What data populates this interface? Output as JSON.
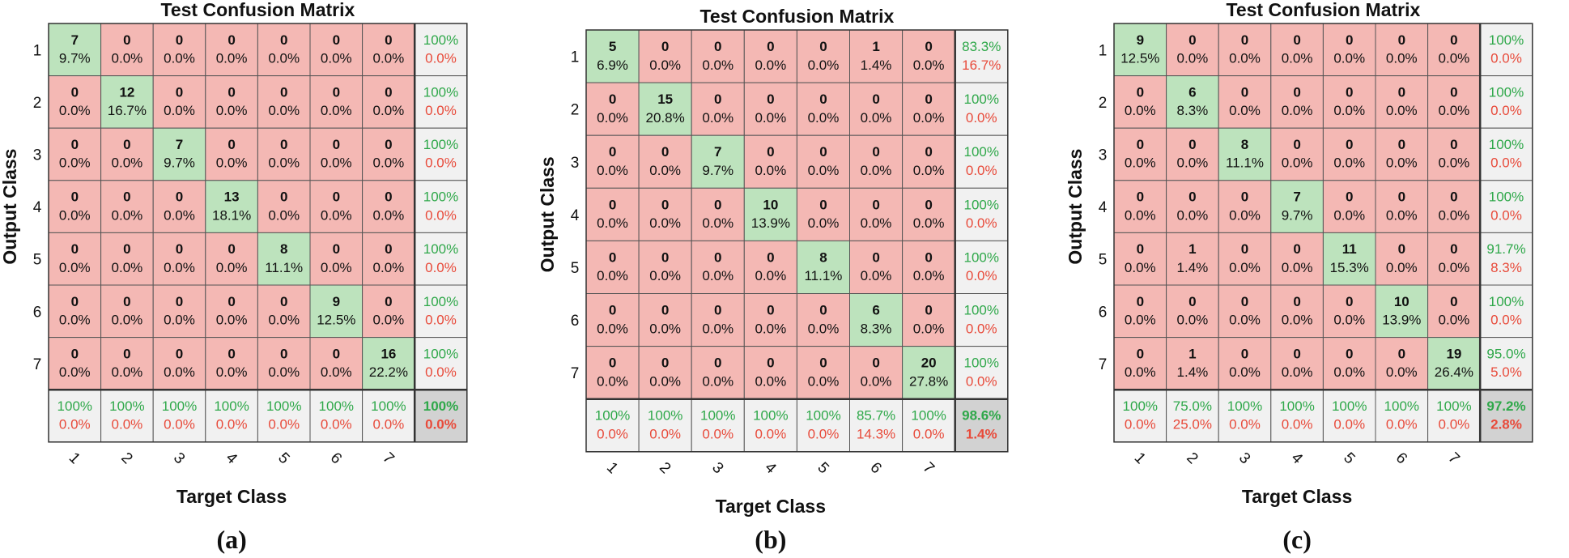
{
  "chart_data": [
    {
      "type": "heatmap",
      "title": "Test Confusion Matrix",
      "xlabel": "Target Class",
      "ylabel": "Output Class",
      "panel_label": "(a)",
      "classes": [
        "1",
        "2",
        "3",
        "4",
        "5",
        "6",
        "7"
      ],
      "matrix": [
        [
          7,
          0,
          0,
          0,
          0,
          0,
          0
        ],
        [
          0,
          12,
          0,
          0,
          0,
          0,
          0
        ],
        [
          0,
          0,
          7,
          0,
          0,
          0,
          0
        ],
        [
          0,
          0,
          0,
          13,
          0,
          0,
          0
        ],
        [
          0,
          0,
          0,
          0,
          8,
          0,
          0
        ],
        [
          0,
          0,
          0,
          0,
          0,
          9,
          0
        ],
        [
          0,
          0,
          0,
          0,
          0,
          0,
          16
        ]
      ],
      "cell_percent": [
        [
          "9.7%",
          "0.0%",
          "0.0%",
          "0.0%",
          "0.0%",
          "0.0%",
          "0.0%"
        ],
        [
          "0.0%",
          "16.7%",
          "0.0%",
          "0.0%",
          "0.0%",
          "0.0%",
          "0.0%"
        ],
        [
          "0.0%",
          "0.0%",
          "9.7%",
          "0.0%",
          "0.0%",
          "0.0%",
          "0.0%"
        ],
        [
          "0.0%",
          "0.0%",
          "0.0%",
          "18.1%",
          "0.0%",
          "0.0%",
          "0.0%"
        ],
        [
          "0.0%",
          "0.0%",
          "0.0%",
          "0.0%",
          "11.1%",
          "0.0%",
          "0.0%"
        ],
        [
          "0.0%",
          "0.0%",
          "0.0%",
          "0.0%",
          "0.0%",
          "12.5%",
          "0.0%"
        ],
        [
          "0.0%",
          "0.0%",
          "0.0%",
          "0.0%",
          "0.0%",
          "0.0%",
          "22.2%"
        ]
      ],
      "row_summary": [
        [
          "100%",
          "0.0%"
        ],
        [
          "100%",
          "0.0%"
        ],
        [
          "100%",
          "0.0%"
        ],
        [
          "100%",
          "0.0%"
        ],
        [
          "100%",
          "0.0%"
        ],
        [
          "100%",
          "0.0%"
        ],
        [
          "100%",
          "0.0%"
        ]
      ],
      "col_summary": [
        [
          "100%",
          "0.0%"
        ],
        [
          "100%",
          "0.0%"
        ],
        [
          "100%",
          "0.0%"
        ],
        [
          "100%",
          "0.0%"
        ],
        [
          "100%",
          "0.0%"
        ],
        [
          "100%",
          "0.0%"
        ],
        [
          "100%",
          "0.0%"
        ]
      ],
      "overall": [
        "100%",
        "0.0%"
      ]
    },
    {
      "type": "heatmap",
      "title": "Test Confusion Matrix",
      "xlabel": "Target Class",
      "ylabel": "Output Class",
      "panel_label": "(b)",
      "classes": [
        "1",
        "2",
        "3",
        "4",
        "5",
        "6",
        "7"
      ],
      "matrix": [
        [
          5,
          0,
          0,
          0,
          0,
          1,
          0
        ],
        [
          0,
          15,
          0,
          0,
          0,
          0,
          0
        ],
        [
          0,
          0,
          7,
          0,
          0,
          0,
          0
        ],
        [
          0,
          0,
          0,
          10,
          0,
          0,
          0
        ],
        [
          0,
          0,
          0,
          0,
          8,
          0,
          0
        ],
        [
          0,
          0,
          0,
          0,
          0,
          6,
          0
        ],
        [
          0,
          0,
          0,
          0,
          0,
          0,
          20
        ]
      ],
      "cell_percent": [
        [
          "6.9%",
          "0.0%",
          "0.0%",
          "0.0%",
          "0.0%",
          "1.4%",
          "0.0%"
        ],
        [
          "0.0%",
          "20.8%",
          "0.0%",
          "0.0%",
          "0.0%",
          "0.0%",
          "0.0%"
        ],
        [
          "0.0%",
          "0.0%",
          "9.7%",
          "0.0%",
          "0.0%",
          "0.0%",
          "0.0%"
        ],
        [
          "0.0%",
          "0.0%",
          "0.0%",
          "13.9%",
          "0.0%",
          "0.0%",
          "0.0%"
        ],
        [
          "0.0%",
          "0.0%",
          "0.0%",
          "0.0%",
          "11.1%",
          "0.0%",
          "0.0%"
        ],
        [
          "0.0%",
          "0.0%",
          "0.0%",
          "0.0%",
          "0.0%",
          "8.3%",
          "0.0%"
        ],
        [
          "0.0%",
          "0.0%",
          "0.0%",
          "0.0%",
          "0.0%",
          "0.0%",
          "27.8%"
        ]
      ],
      "row_summary": [
        [
          "83.3%",
          "16.7%"
        ],
        [
          "100%",
          "0.0%"
        ],
        [
          "100%",
          "0.0%"
        ],
        [
          "100%",
          "0.0%"
        ],
        [
          "100%",
          "0.0%"
        ],
        [
          "100%",
          "0.0%"
        ],
        [
          "100%",
          "0.0%"
        ]
      ],
      "col_summary": [
        [
          "100%",
          "0.0%"
        ],
        [
          "100%",
          "0.0%"
        ],
        [
          "100%",
          "0.0%"
        ],
        [
          "100%",
          "0.0%"
        ],
        [
          "100%",
          "0.0%"
        ],
        [
          "85.7%",
          "14.3%"
        ],
        [
          "100%",
          "0.0%"
        ]
      ],
      "overall": [
        "98.6%",
        "1.4%"
      ]
    },
    {
      "type": "heatmap",
      "title": "Test Confusion Matrix",
      "xlabel": "Target Class",
      "ylabel": "Output Class",
      "panel_label": "(c)",
      "classes": [
        "1",
        "2",
        "3",
        "4",
        "5",
        "6",
        "7"
      ],
      "matrix": [
        [
          9,
          0,
          0,
          0,
          0,
          0,
          0
        ],
        [
          0,
          6,
          0,
          0,
          0,
          0,
          0
        ],
        [
          0,
          0,
          8,
          0,
          0,
          0,
          0
        ],
        [
          0,
          0,
          0,
          7,
          0,
          0,
          0
        ],
        [
          0,
          1,
          0,
          0,
          11,
          0,
          0
        ],
        [
          0,
          0,
          0,
          0,
          0,
          10,
          0
        ],
        [
          0,
          1,
          0,
          0,
          0,
          0,
          19
        ]
      ],
      "cell_percent": [
        [
          "12.5%",
          "0.0%",
          "0.0%",
          "0.0%",
          "0.0%",
          "0.0%",
          "0.0%"
        ],
        [
          "0.0%",
          "8.3%",
          "0.0%",
          "0.0%",
          "0.0%",
          "0.0%",
          "0.0%"
        ],
        [
          "0.0%",
          "0.0%",
          "11.1%",
          "0.0%",
          "0.0%",
          "0.0%",
          "0.0%"
        ],
        [
          "0.0%",
          "0.0%",
          "0.0%",
          "9.7%",
          "0.0%",
          "0.0%",
          "0.0%"
        ],
        [
          "0.0%",
          "1.4%",
          "0.0%",
          "0.0%",
          "15.3%",
          "0.0%",
          "0.0%"
        ],
        [
          "0.0%",
          "0.0%",
          "0.0%",
          "0.0%",
          "0.0%",
          "13.9%",
          "0.0%"
        ],
        [
          "0.0%",
          "1.4%",
          "0.0%",
          "0.0%",
          "0.0%",
          "0.0%",
          "26.4%"
        ]
      ],
      "row_summary": [
        [
          "100%",
          "0.0%"
        ],
        [
          "100%",
          "0.0%"
        ],
        [
          "100%",
          "0.0%"
        ],
        [
          "100%",
          "0.0%"
        ],
        [
          "91.7%",
          "8.3%"
        ],
        [
          "100%",
          "0.0%"
        ],
        [
          "95.0%",
          "5.0%"
        ]
      ],
      "col_summary": [
        [
          "100%",
          "0.0%"
        ],
        [
          "75.0%",
          "25.0%"
        ],
        [
          "100%",
          "0.0%"
        ],
        [
          "100%",
          "0.0%"
        ],
        [
          "100%",
          "0.0%"
        ],
        [
          "100%",
          "0.0%"
        ],
        [
          "100%",
          "0.0%"
        ]
      ],
      "overall": [
        "97.2%",
        "2.8%"
      ]
    }
  ],
  "colors": {
    "correct_fill": "#bde3bd",
    "wrong_fill": "#f4b8b4",
    "summary_fill": "#f1f1f1",
    "overall_fill": "#d2d2d2",
    "good_text": "#2fa84a",
    "bad_text": "#e84a3a",
    "grid": "#555555"
  }
}
